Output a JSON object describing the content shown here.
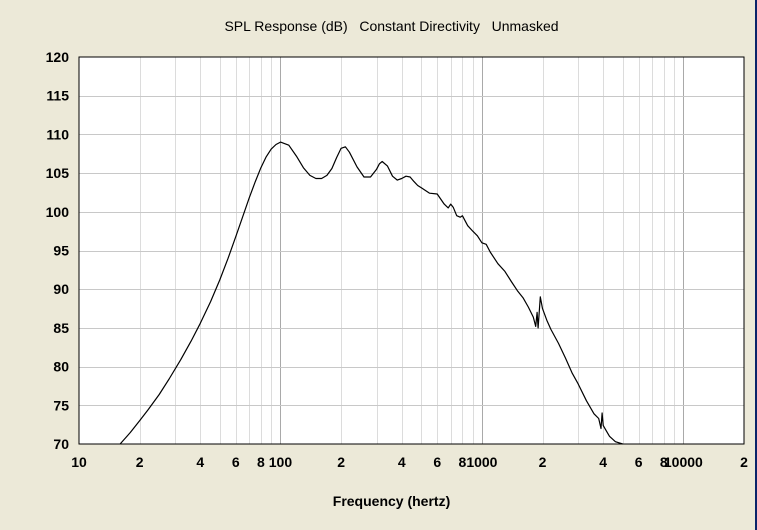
{
  "chart_data": {
    "type": "line",
    "title": "SPL Response (dB)   Constant Directivity   Unmasked",
    "xlabel": "Frequency (hertz)",
    "ylabel": "",
    "x_scale": "log",
    "xlim": [
      10,
      20000
    ],
    "ylim": [
      70,
      120
    ],
    "grid": true,
    "x_tick_labels": [
      {
        "value": 10,
        "label": "10"
      },
      {
        "value": 20,
        "label": "2"
      },
      {
        "value": 40,
        "label": "4"
      },
      {
        "value": 60,
        "label": "6"
      },
      {
        "value": 80,
        "label": "8"
      },
      {
        "value": 100,
        "label": "100"
      },
      {
        "value": 200,
        "label": "2"
      },
      {
        "value": 400,
        "label": "4"
      },
      {
        "value": 600,
        "label": "6"
      },
      {
        "value": 800,
        "label": "8"
      },
      {
        "value": 1000,
        "label": "1000"
      },
      {
        "value": 2000,
        "label": "2"
      },
      {
        "value": 4000,
        "label": "4"
      },
      {
        "value": 6000,
        "label": "6"
      },
      {
        "value": 8000,
        "label": "8"
      },
      {
        "value": 10000,
        "label": "10000"
      },
      {
        "value": 20000,
        "label": "2"
      }
    ],
    "y_ticks": [
      70,
      75,
      80,
      85,
      90,
      95,
      100,
      105,
      110,
      115,
      120
    ],
    "series": [
      {
        "color": "#000000",
        "x": [
          16,
          18,
          20,
          22,
          25,
          28,
          32,
          36,
          40,
          45,
          50,
          55,
          60,
          65,
          70,
          75,
          80,
          85,
          90,
          95,
          100,
          110,
          120,
          130,
          140,
          150,
          160,
          170,
          180,
          190,
          200,
          210,
          220,
          240,
          260,
          280,
          300,
          310,
          320,
          340,
          360,
          380,
          400,
          420,
          440,
          460,
          480,
          500,
          550,
          600,
          650,
          680,
          700,
          720,
          750,
          780,
          800,
          850,
          900,
          950,
          1000,
          1050,
          1100,
          1200,
          1300,
          1400,
          1500,
          1600,
          1700,
          1800,
          1850,
          1880,
          1900,
          1950,
          2000,
          2100,
          2200,
          2400,
          2600,
          2800,
          3000,
          3300,
          3600,
          3800,
          3900,
          3950,
          4000,
          4100,
          4300,
          4600,
          5000
        ],
        "y": [
          70,
          71.5,
          73.0,
          74.4,
          76.4,
          78.4,
          80.9,
          83.3,
          85.6,
          88.4,
          91.2,
          94.0,
          96.8,
          99.4,
          101.8,
          103.9,
          105.7,
          107.1,
          108.1,
          108.7,
          109.0,
          108.6,
          107.2,
          105.7,
          104.7,
          104.3,
          104.3,
          104.7,
          105.6,
          107.0,
          108.2,
          108.4,
          107.7,
          105.8,
          104.5,
          104.5,
          105.5,
          106.2,
          106.5,
          105.9,
          104.6,
          104.1,
          104.3,
          104.6,
          104.5,
          103.9,
          103.4,
          103.1,
          102.4,
          102.3,
          101.0,
          100.5,
          101.0,
          100.6,
          99.5,
          99.3,
          99.5,
          98.2,
          97.5,
          96.9,
          96.0,
          95.8,
          94.8,
          93.3,
          92.3,
          91.0,
          89.8,
          88.9,
          87.7,
          86.4,
          85.2,
          87.0,
          85.0,
          89.0,
          87.5,
          86.0,
          84.8,
          83.0,
          81.1,
          79.2,
          77.8,
          75.6,
          73.9,
          73.3,
          72.0,
          74.0,
          72.4,
          71.9,
          71.0,
          70.3,
          70.0
        ]
      }
    ]
  }
}
